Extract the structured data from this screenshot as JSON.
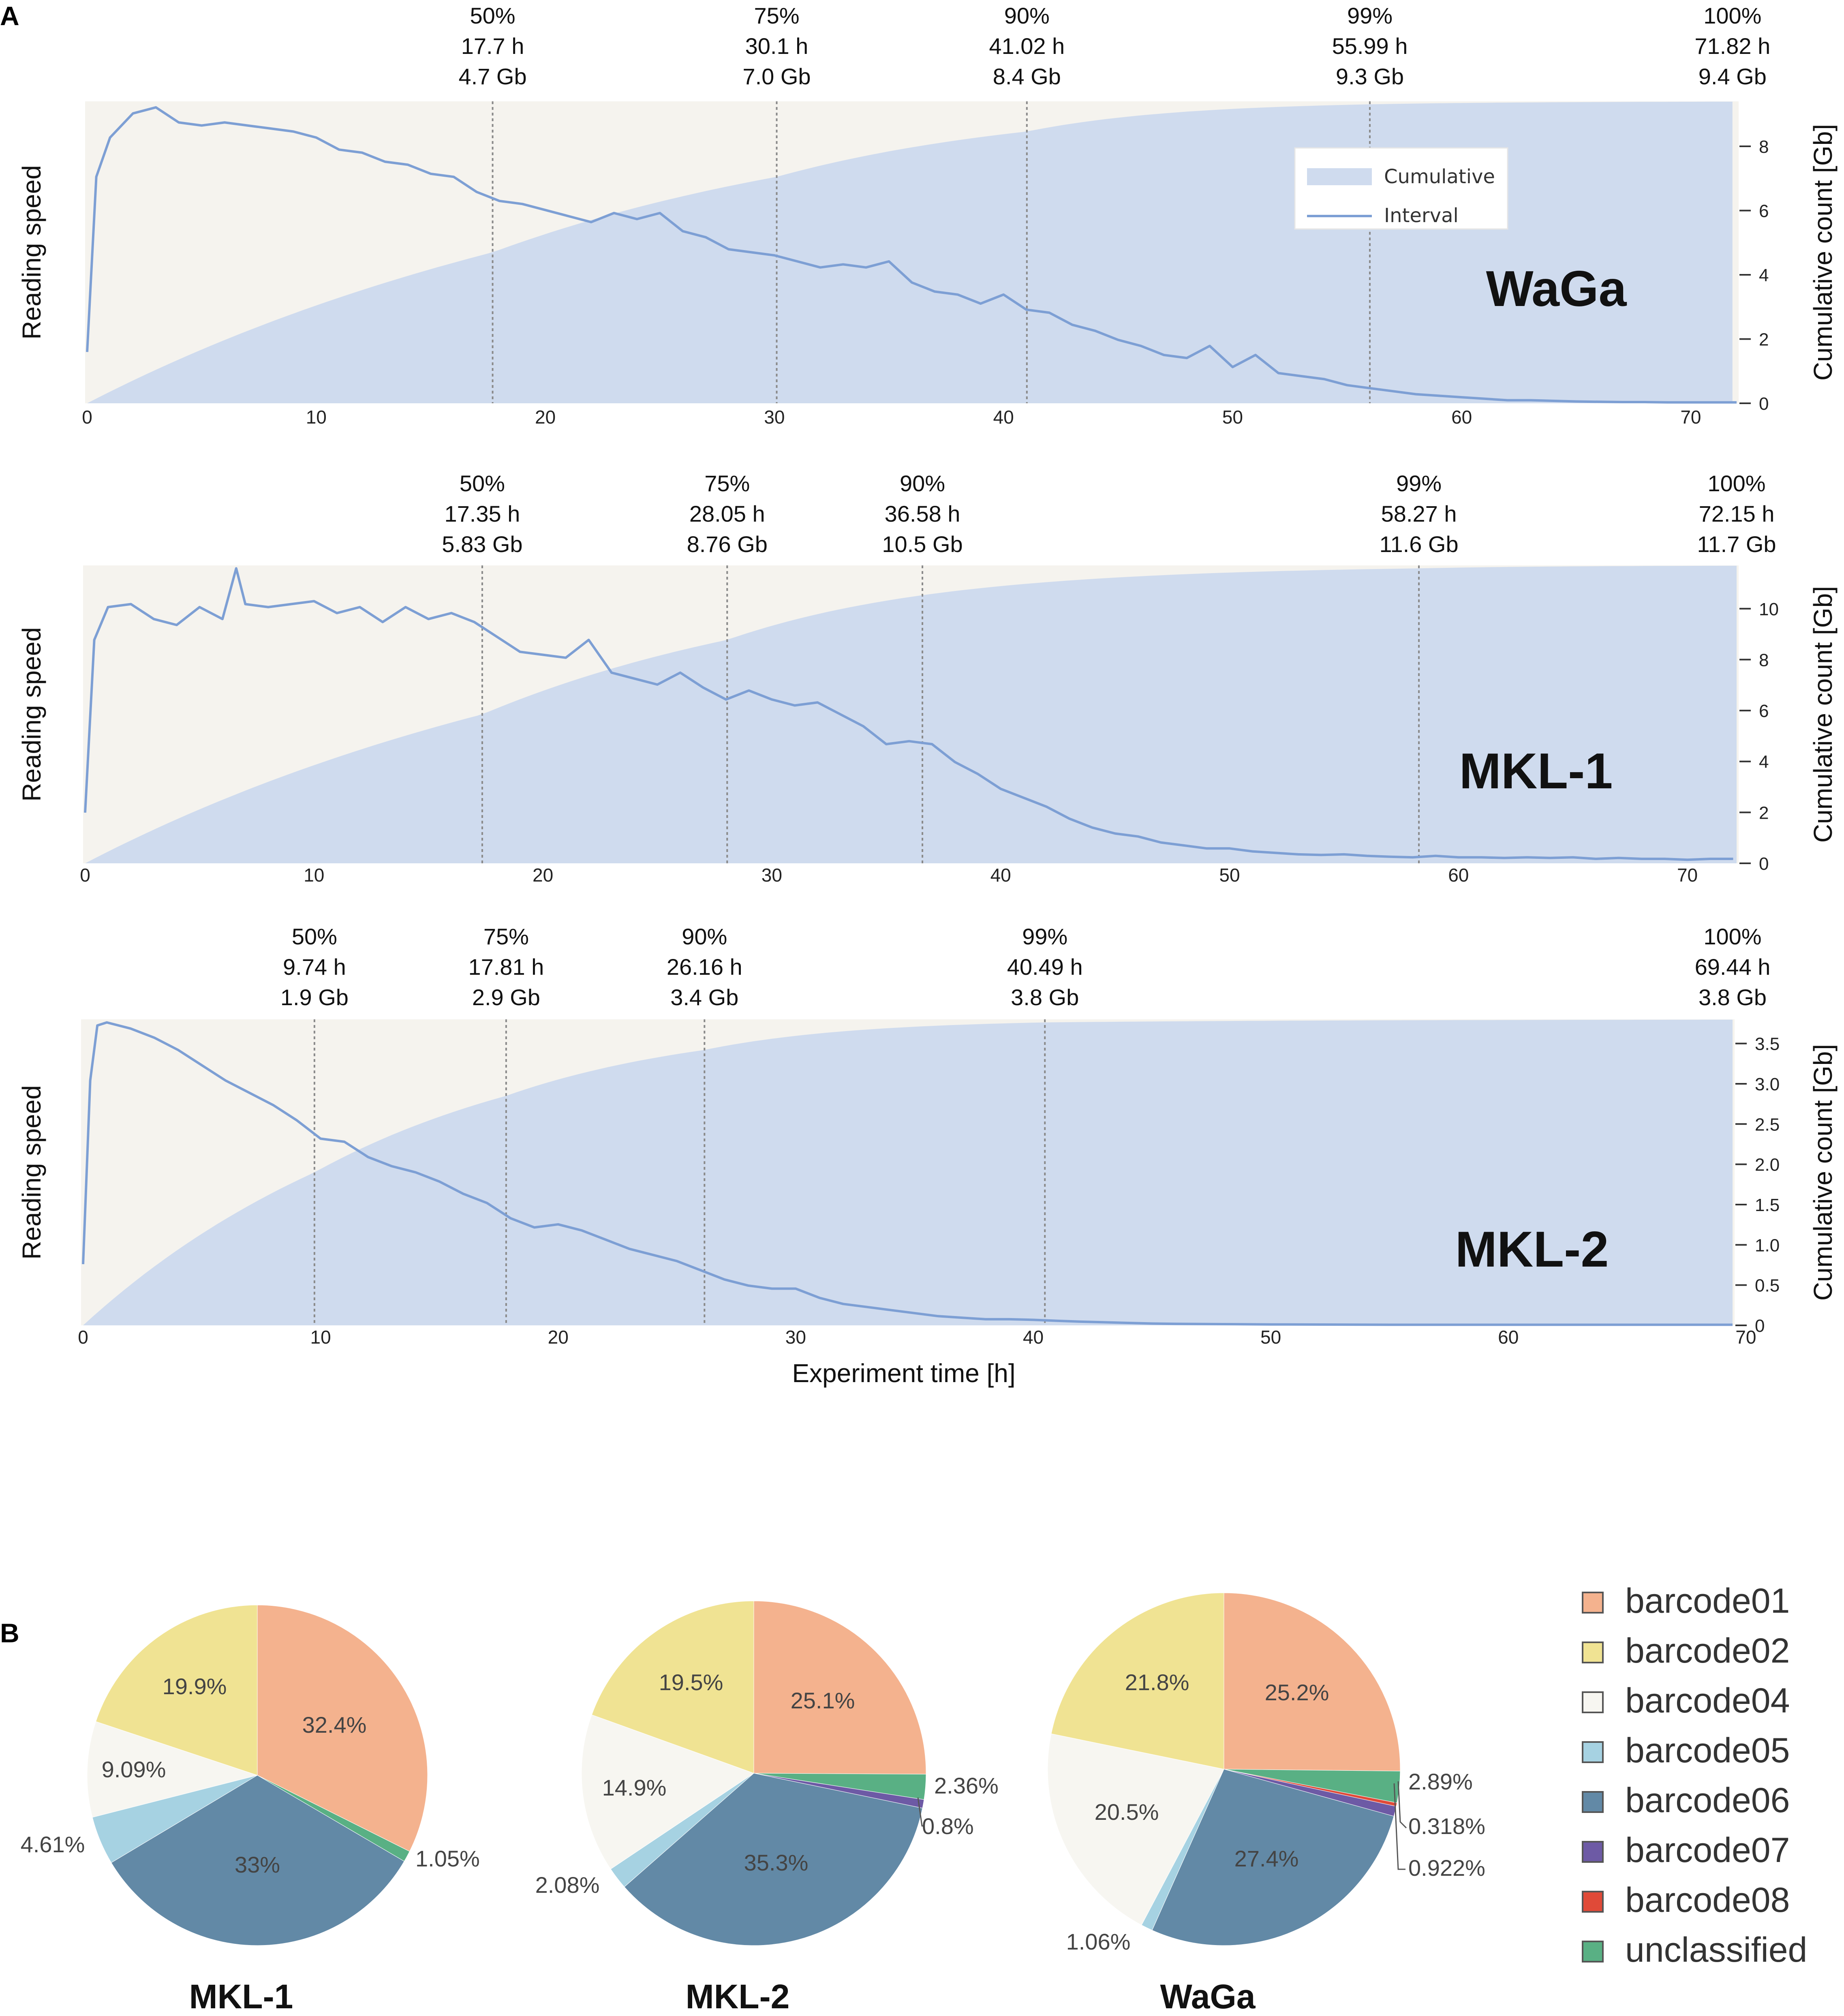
{
  "panel_labels": {
    "a": "A",
    "b": "B"
  },
  "chart_data": [
    {
      "type": "area",
      "id": "waga",
      "sample": "WaGa",
      "ylabel_left": "Reading speed",
      "ylabel_right": "Cumulative count [Gb]",
      "xlabel": "",
      "xlim": [
        0,
        72
      ],
      "ylim_right": [
        0,
        9.4
      ],
      "xticks": [
        0,
        10,
        20,
        30,
        40,
        50,
        60,
        70
      ],
      "yticks_right": [
        0,
        2,
        4,
        6,
        8
      ],
      "ytick_labels_right": [
        "0",
        "2",
        "4",
        "6",
        "8"
      ],
      "total_time_h": 71.82,
      "total_gb": 9.4,
      "legend": {
        "cumulative": "Cumulative",
        "interval": "Interval"
      },
      "markers": [
        {
          "pct": "50%",
          "time_h": 17.7,
          "time_label": "17.7 h",
          "gb_label": "4.7 Gb"
        },
        {
          "pct": "75%",
          "time_h": 30.1,
          "time_label": "30.1 h",
          "gb_label": "7.0 Gb"
        },
        {
          "pct": "90%",
          "time_h": 41.02,
          "time_label": "41.02 h",
          "gb_label": "8.4 Gb"
        },
        {
          "pct": "99%",
          "time_h": 55.99,
          "time_label": "55.99 h",
          "gb_label": "9.3 Gb"
        },
        {
          "pct": "100%",
          "time_h": 71.82,
          "time_label": "71.82 h",
          "gb_label": "9.4 Gb"
        }
      ],
      "interval_series": {
        "x": [
          0,
          0.4,
          1,
          2,
          3,
          4,
          5,
          6,
          7,
          8,
          9,
          10,
          11,
          12,
          13,
          14,
          15,
          16,
          17,
          18,
          19,
          20,
          21,
          22,
          23,
          24,
          25,
          26,
          27,
          28,
          29,
          30,
          31,
          32,
          33,
          34,
          35,
          36,
          37,
          38,
          39,
          40,
          41,
          42,
          43,
          44,
          45,
          46,
          47,
          48,
          49,
          50,
          51,
          52,
          53,
          54,
          55,
          56,
          57,
          58,
          59,
          60,
          61,
          62,
          63,
          64,
          65,
          66,
          67,
          68,
          69,
          70,
          71,
          72
        ],
        "y": [
          0.17,
          0.75,
          0.88,
          0.96,
          0.98,
          0.93,
          0.92,
          0.93,
          0.92,
          0.91,
          0.9,
          0.88,
          0.84,
          0.83,
          0.8,
          0.79,
          0.76,
          0.75,
          0.7,
          0.67,
          0.66,
          0.64,
          0.62,
          0.6,
          0.63,
          0.61,
          0.63,
          0.57,
          0.55,
          0.51,
          0.5,
          0.49,
          0.47,
          0.45,
          0.46,
          0.45,
          0.47,
          0.4,
          0.37,
          0.36,
          0.33,
          0.36,
          0.31,
          0.3,
          0.26,
          0.24,
          0.21,
          0.19,
          0.16,
          0.15,
          0.19,
          0.12,
          0.16,
          0.1,
          0.09,
          0.08,
          0.06,
          0.05,
          0.04,
          0.03,
          0.025,
          0.02,
          0.015,
          0.01,
          0.01,
          0.008,
          0.006,
          0.005,
          0.004,
          0.004,
          0.003,
          0.003,
          0.003,
          0.003
        ]
      }
    },
    {
      "type": "area",
      "id": "mkl1",
      "sample": "MKL-1",
      "ylabel_left": "Reading speed",
      "ylabel_right": "Cumulative count [Gb]",
      "xlabel": "",
      "xlim": [
        0,
        72.15
      ],
      "ylim_right": [
        0,
        11.7
      ],
      "xticks": [
        0,
        10,
        20,
        30,
        40,
        50,
        60,
        70
      ],
      "yticks_right": [
        0,
        2,
        4,
        6,
        8,
        10
      ],
      "ytick_labels_right": [
        "0",
        "2",
        "4",
        "6",
        "8",
        "10"
      ],
      "total_time_h": 72.15,
      "total_gb": 11.7,
      "markers": [
        {
          "pct": "50%",
          "time_h": 17.35,
          "time_label": "17.35 h",
          "gb_label": "5.83 Gb"
        },
        {
          "pct": "75%",
          "time_h": 28.05,
          "time_label": "28.05 h",
          "gb_label": "8.76 Gb"
        },
        {
          "pct": "90%",
          "time_h": 36.58,
          "time_label": "36.58 h",
          "gb_label": "10.5 Gb"
        },
        {
          "pct": "99%",
          "time_h": 58.27,
          "time_label": "58.27 h",
          "gb_label": "11.6 Gb"
        },
        {
          "pct": "100%",
          "time_h": 72.15,
          "time_label": "72.15 h",
          "gb_label": "11.7 Gb"
        }
      ],
      "interval_series": {
        "x": [
          0,
          0.4,
          1,
          2,
          3,
          4,
          5,
          6,
          6.6,
          7,
          8,
          9,
          10,
          11,
          12,
          13,
          14,
          15,
          16,
          17,
          18,
          19,
          20,
          21,
          22,
          23,
          24,
          25,
          26,
          27,
          28,
          29,
          30,
          31,
          32,
          33,
          34,
          35,
          36,
          37,
          38,
          39,
          40,
          41,
          42,
          43,
          44,
          45,
          46,
          47,
          48,
          49,
          50,
          51,
          52,
          53,
          54,
          55,
          56,
          57,
          58,
          59,
          60,
          61,
          62,
          63,
          64,
          65,
          66,
          67,
          68,
          69,
          70,
          71,
          72
        ],
        "y": [
          0.17,
          0.75,
          0.86,
          0.87,
          0.82,
          0.8,
          0.86,
          0.82,
          0.99,
          0.87,
          0.86,
          0.87,
          0.88,
          0.84,
          0.86,
          0.81,
          0.86,
          0.82,
          0.84,
          0.81,
          0.76,
          0.71,
          0.7,
          0.69,
          0.75,
          0.64,
          0.62,
          0.6,
          0.64,
          0.59,
          0.55,
          0.58,
          0.55,
          0.53,
          0.54,
          0.5,
          0.46,
          0.4,
          0.41,
          0.4,
          0.34,
          0.3,
          0.25,
          0.22,
          0.19,
          0.15,
          0.12,
          0.1,
          0.09,
          0.07,
          0.06,
          0.05,
          0.05,
          0.04,
          0.035,
          0.03,
          0.028,
          0.03,
          0.025,
          0.022,
          0.02,
          0.025,
          0.02,
          0.02,
          0.018,
          0.02,
          0.018,
          0.02,
          0.015,
          0.018,
          0.015,
          0.015,
          0.012,
          0.015,
          0.015
        ]
      }
    },
    {
      "type": "area",
      "id": "mkl2",
      "sample": "MKL-2",
      "ylabel_left": "Reading speed",
      "ylabel_right": "Cumulative count [Gb]",
      "xlabel": "Experiment time [h]",
      "xlim": [
        0,
        69.44
      ],
      "ylim_right": [
        0,
        3.8
      ],
      "xticks": [
        0,
        10,
        20,
        30,
        40,
        50,
        60,
        70
      ],
      "yticks_right": [
        0,
        0.5,
        1.0,
        1.5,
        2.0,
        2.5,
        3.0,
        3.5
      ],
      "ytick_labels_right": [
        "0",
        "0.5",
        "1.0",
        "1.5",
        "2.0",
        "2.5",
        "3.0",
        "3.5"
      ],
      "total_time_h": 69.44,
      "total_gb": 3.8,
      "markers": [
        {
          "pct": "50%",
          "time_h": 9.74,
          "time_label": "9.74 h",
          "gb_label": "1.9 Gb"
        },
        {
          "pct": "75%",
          "time_h": 17.81,
          "time_label": "17.81 h",
          "gb_label": "2.9 Gb"
        },
        {
          "pct": "90%",
          "time_h": 26.16,
          "time_label": "26.16 h",
          "gb_label": "3.4 Gb"
        },
        {
          "pct": "99%",
          "time_h": 40.49,
          "time_label": "40.49 h",
          "gb_label": "3.8 Gb"
        },
        {
          "pct": "100%",
          "time_h": 69.44,
          "time_label": "69.44 h",
          "gb_label": "3.8 Gb"
        }
      ],
      "interval_series": {
        "x": [
          0,
          0.3,
          0.6,
          1,
          2,
          3,
          4,
          5,
          6,
          7,
          8,
          9,
          10,
          11,
          12,
          13,
          14,
          15,
          16,
          17,
          18,
          19,
          20,
          21,
          22,
          23,
          24,
          25,
          26,
          27,
          28,
          29,
          30,
          31,
          32,
          33,
          34,
          35,
          36,
          37,
          38,
          39,
          40,
          41,
          42,
          43,
          44,
          45,
          46,
          48,
          50,
          55,
          60,
          65,
          69.44
        ],
        "y": [
          0.2,
          0.8,
          0.98,
          0.99,
          0.97,
          0.94,
          0.9,
          0.85,
          0.8,
          0.76,
          0.72,
          0.67,
          0.61,
          0.6,
          0.55,
          0.52,
          0.5,
          0.47,
          0.43,
          0.4,
          0.35,
          0.32,
          0.33,
          0.31,
          0.28,
          0.25,
          0.23,
          0.21,
          0.18,
          0.15,
          0.13,
          0.12,
          0.12,
          0.09,
          0.07,
          0.06,
          0.05,
          0.04,
          0.03,
          0.025,
          0.02,
          0.02,
          0.018,
          0.015,
          0.012,
          0.01,
          0.008,
          0.006,
          0.005,
          0.004,
          0.003,
          0.002,
          0.002,
          0.002,
          0.002
        ]
      }
    },
    {
      "type": "pie",
      "id": "pie-mkl1",
      "title": "MKL-1",
      "slices": [
        {
          "label": "barcode01",
          "value": 32.4,
          "text": "32.4%"
        },
        {
          "label": "unclassified",
          "value": 1.05,
          "text": "1.05%"
        },
        {
          "label": "barcode06",
          "value": 33.0,
          "text": "33%"
        },
        {
          "label": "barcode05",
          "value": 4.61,
          "text": "4.61%"
        },
        {
          "label": "barcode04",
          "value": 9.09,
          "text": "9.09%"
        },
        {
          "label": "barcode02",
          "value": 19.9,
          "text": "19.9%"
        }
      ]
    },
    {
      "type": "pie",
      "id": "pie-mkl2",
      "title": "MKL-2",
      "slices": [
        {
          "label": "barcode01",
          "value": 25.1,
          "text": "25.1%"
        },
        {
          "label": "unclassified",
          "value": 2.36,
          "text": "2.36%"
        },
        {
          "label": "barcode07",
          "value": 0.8,
          "text": "0.8%"
        },
        {
          "label": "barcode06",
          "value": 35.3,
          "text": "35.3%"
        },
        {
          "label": "barcode05",
          "value": 2.08,
          "text": "2.08%"
        },
        {
          "label": "barcode04",
          "value": 14.9,
          "text": "14.9%"
        },
        {
          "label": "barcode02",
          "value": 19.5,
          "text": "19.5%"
        }
      ]
    },
    {
      "type": "pie",
      "id": "pie-waga",
      "title": "WaGa",
      "slices": [
        {
          "label": "barcode01",
          "value": 25.2,
          "text": "25.2%"
        },
        {
          "label": "unclassified",
          "value": 2.89,
          "text": "2.89%"
        },
        {
          "label": "barcode08",
          "value": 0.318,
          "text": "0.318%"
        },
        {
          "label": "barcode07",
          "value": 0.922,
          "text": "0.922%"
        },
        {
          "label": "barcode06",
          "value": 27.4,
          "text": "27.4%"
        },
        {
          "label": "barcode05",
          "value": 1.06,
          "text": "1.06%"
        },
        {
          "label": "barcode04",
          "value": 20.5,
          "text": "20.5%"
        },
        {
          "label": "barcode02",
          "value": 21.8,
          "text": "21.8%"
        }
      ]
    }
  ],
  "pie_legend": [
    {
      "label": "barcode01",
      "color": "#f4b28e"
    },
    {
      "label": "barcode02",
      "color": "#f0e393"
    },
    {
      "label": "barcode04",
      "color": "#f7f6f1"
    },
    {
      "label": "barcode05",
      "color": "#a6d2e2"
    },
    {
      "label": "barcode06",
      "color": "#6289a6"
    },
    {
      "label": "barcode07",
      "color": "#6d5aa5"
    },
    {
      "label": "barcode08",
      "color": "#e04a38"
    },
    {
      "label": "unclassified",
      "color": "#59b084"
    }
  ],
  "colors": {
    "plot_bg": "#f5f3ee",
    "cumulative_fill": "#cfdbee",
    "interval_line": "#7d9fd4",
    "marker_line": "#8a8a8a"
  }
}
